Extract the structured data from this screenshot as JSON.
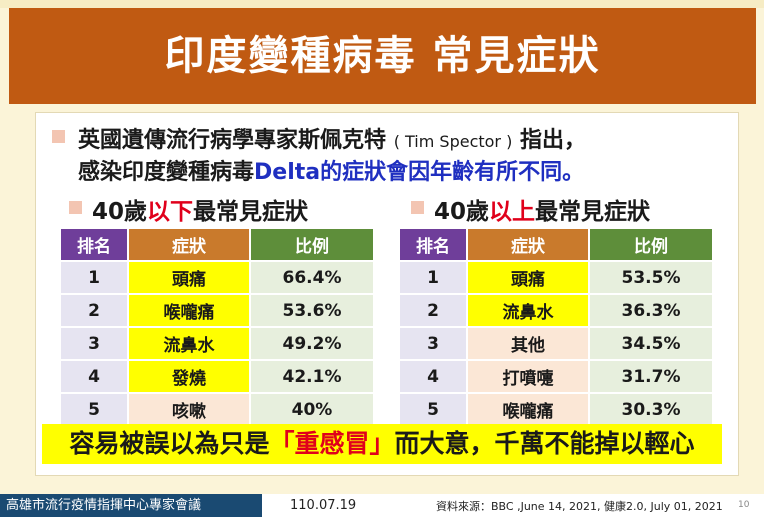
{
  "title": "印度變種病毒 常見症狀",
  "intro": {
    "line1_a": "英國遺傳流行病學專家斯佩克特",
    "line1_b": "( Tim Spector )",
    "line1_c": "指出，",
    "line2_a": "感染印度變種病毒",
    "line2_b": "Delta的症狀會因年齡有所不同",
    "line2_c": "。"
  },
  "under40": {
    "heading_a": "40歲",
    "heading_b": "以下",
    "heading_c": "最常見症狀",
    "headers": [
      "排名",
      "症狀",
      "比例"
    ],
    "rows": [
      {
        "rank": "1",
        "symptom": "頭痛",
        "pct": "66.4%"
      },
      {
        "rank": "2",
        "symptom": "喉嚨痛",
        "pct": "53.6%"
      },
      {
        "rank": "3",
        "symptom": "流鼻水",
        "pct": "49.2%"
      },
      {
        "rank": "4",
        "symptom": "發燒",
        "pct": "42.1%"
      },
      {
        "rank": "5",
        "symptom": "咳嗽",
        "pct": "40%"
      }
    ]
  },
  "over40": {
    "heading_a": "40歲",
    "heading_b": "以上",
    "heading_c": "最常見症狀",
    "headers": [
      "排名",
      "症狀",
      "比例"
    ],
    "rows": [
      {
        "rank": "1",
        "symptom": "頭痛",
        "pct": "53.5%"
      },
      {
        "rank": "2",
        "symptom": "流鼻水",
        "pct": "36.3%"
      },
      {
        "rank": "3",
        "symptom": "其他",
        "pct": "34.5%"
      },
      {
        "rank": "4",
        "symptom": "打噴嚏",
        "pct": "31.7%"
      },
      {
        "rank": "5",
        "symptom": "喉嚨痛",
        "pct": "30.3%"
      }
    ]
  },
  "banner": {
    "a": "容易被誤以為只是",
    "b": "「重感冒」",
    "c": "而大意，千萬不能掉以輕心"
  },
  "footer": {
    "org": "高雄市流行疫情指揮中心專家會議",
    "date": "110.07.19",
    "source": "資料來源：BBC ,June 14, 2021, 健康2.0, July 01, 2021",
    "page": "10"
  },
  "colors": {
    "title_bar": "#c05a12",
    "rank_header": "#6f3e9a",
    "symptom_header": "#c97a2c",
    "pct_header": "#5e8e3a",
    "highlight": "#ffff00",
    "emphasis_red": "#e0001b",
    "emphasis_blue": "#1f2fc0"
  }
}
